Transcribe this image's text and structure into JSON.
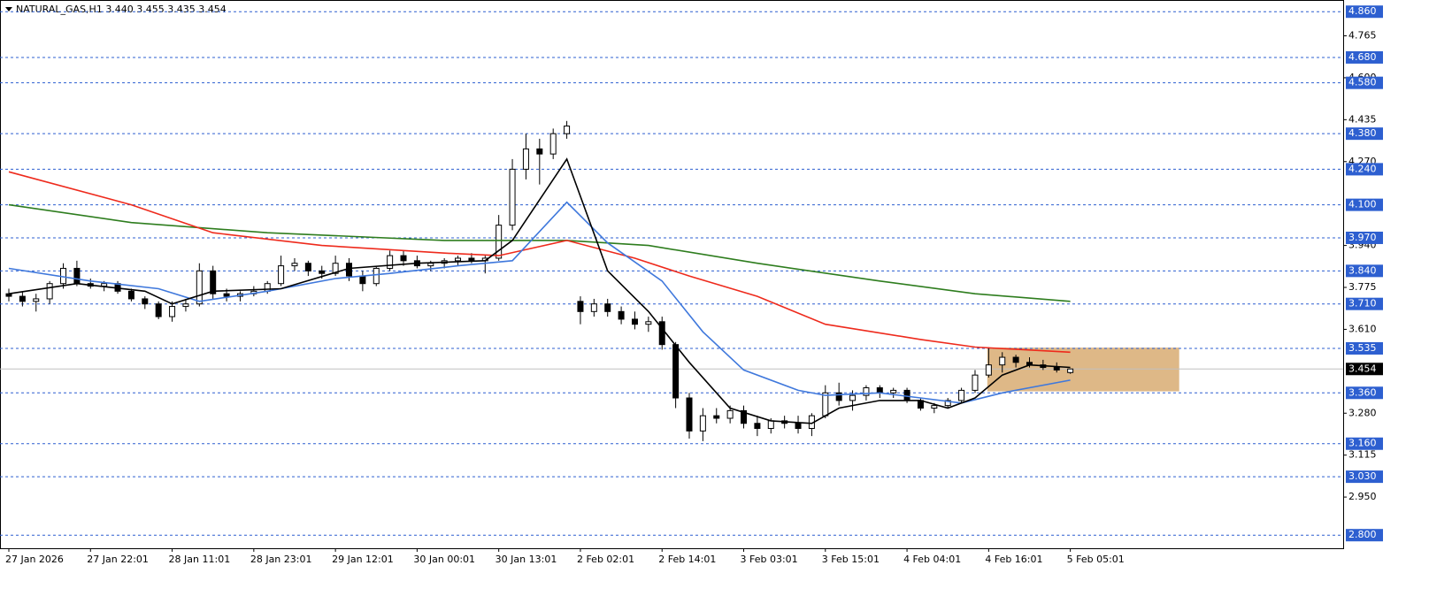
{
  "chart_data": {
    "type": "candlestick",
    "title": "NATURAL_GAS,H1  3.440 3.455 3.435 3.454",
    "ylim": [
      2.7485,
      4.906
    ],
    "xlim": [
      -0.65,
      98.05
    ],
    "yticks": [
      {
        "value": 4.765,
        "label": "4.765"
      },
      {
        "value": 4.6,
        "label": "4.600"
      },
      {
        "value": 4.435,
        "label": "4.435"
      },
      {
        "value": 4.27,
        "label": "4.270"
      },
      {
        "value": 3.94,
        "label": "3.940"
      },
      {
        "value": 3.775,
        "label": "3.775"
      },
      {
        "value": 3.61,
        "label": "3.610"
      },
      {
        "value": 3.28,
        "label": "3.280"
      },
      {
        "value": 3.115,
        "label": "3.115"
      },
      {
        "value": 2.95,
        "label": "2.950"
      }
    ],
    "levels": [
      {
        "value": 4.86,
        "label": "4.860"
      },
      {
        "value": 4.68,
        "label": "4.680"
      },
      {
        "value": 4.58,
        "label": "4.580"
      },
      {
        "value": 4.38,
        "label": "4.380"
      },
      {
        "value": 4.24,
        "label": "4.240"
      },
      {
        "value": 4.1,
        "label": "4.100"
      },
      {
        "value": 3.97,
        "label": "3.970"
      },
      {
        "value": 3.84,
        "label": "3.840"
      },
      {
        "value": 3.71,
        "label": "3.710"
      },
      {
        "value": 3.535,
        "label": "3.535"
      },
      {
        "value": 3.36,
        "label": "3.360"
      },
      {
        "value": 3.16,
        "label": "3.160"
      },
      {
        "value": 3.03,
        "label": "3.030"
      },
      {
        "value": 2.8,
        "label": "2.800"
      }
    ],
    "level_color": "#2d5fd0",
    "current": {
      "value": 3.454,
      "label": "3.454"
    },
    "xticks": [
      {
        "value": 0,
        "label": "27 Jan 2026"
      },
      {
        "value": 6,
        "label": "27 Jan 22:01"
      },
      {
        "value": 12,
        "label": "28 Jan 11:01"
      },
      {
        "value": 18,
        "label": "28 Jan 23:01"
      },
      {
        "value": 24,
        "label": "29 Jan 12:01"
      },
      {
        "value": 30,
        "label": "30 Jan 00:01"
      },
      {
        "value": 36,
        "label": "30 Jan 13:01"
      },
      {
        "value": 42,
        "label": "2 Feb 02:01"
      },
      {
        "value": 48,
        "label": "2 Feb 14:01"
      },
      {
        "value": 54,
        "label": "3 Feb 03:01"
      },
      {
        "value": 60,
        "label": "3 Feb 15:01"
      },
      {
        "value": 66,
        "label": "4 Feb 04:01"
      },
      {
        "value": 72,
        "label": "4 Feb 16:01"
      },
      {
        "value": 78,
        "label": "5 Feb 05:01"
      }
    ],
    "zone": {
      "x": [
        71.9,
        86.0
      ],
      "y": [
        3.366,
        3.538
      ],
      "color": "#deb887"
    },
    "ohlc": [
      [
        3.75,
        3.77,
        3.72,
        3.74
      ],
      [
        3.74,
        3.76,
        3.7,
        3.72
      ],
      [
        3.72,
        3.75,
        3.68,
        3.73
      ],
      [
        3.73,
        3.8,
        3.71,
        3.79
      ],
      [
        3.79,
        3.87,
        3.77,
        3.85
      ],
      [
        3.85,
        3.88,
        3.78,
        3.79
      ],
      [
        3.79,
        3.81,
        3.77,
        3.78
      ],
      [
        3.78,
        3.8,
        3.76,
        3.79
      ],
      [
        3.79,
        3.8,
        3.75,
        3.76
      ],
      [
        3.76,
        3.77,
        3.72,
        3.73
      ],
      [
        3.73,
        3.74,
        3.69,
        3.71
      ],
      [
        3.71,
        3.72,
        3.65,
        3.66
      ],
      [
        3.66,
        3.72,
        3.64,
        3.7
      ],
      [
        3.7,
        3.73,
        3.68,
        3.71
      ],
      [
        3.71,
        3.87,
        3.7,
        3.84
      ],
      [
        3.84,
        3.86,
        3.73,
        3.75
      ],
      [
        3.75,
        3.77,
        3.72,
        3.74
      ],
      [
        3.74,
        3.76,
        3.72,
        3.75
      ],
      [
        3.75,
        3.78,
        3.74,
        3.76
      ],
      [
        3.76,
        3.8,
        3.75,
        3.79
      ],
      [
        3.79,
        3.9,
        3.78,
        3.86
      ],
      [
        3.86,
        3.89,
        3.84,
        3.87
      ],
      [
        3.87,
        3.88,
        3.82,
        3.84
      ],
      [
        3.84,
        3.86,
        3.81,
        3.83
      ],
      [
        3.83,
        3.9,
        3.82,
        3.87
      ],
      [
        3.87,
        3.89,
        3.8,
        3.82
      ],
      [
        3.82,
        3.84,
        3.76,
        3.79
      ],
      [
        3.79,
        3.86,
        3.78,
        3.85
      ],
      [
        3.85,
        3.92,
        3.84,
        3.9
      ],
      [
        3.9,
        3.92,
        3.86,
        3.88
      ],
      [
        3.88,
        3.9,
        3.85,
        3.86
      ],
      [
        3.86,
        3.88,
        3.84,
        3.87
      ],
      [
        3.87,
        3.89,
        3.85,
        3.88
      ],
      [
        3.88,
        3.9,
        3.86,
        3.89
      ],
      [
        3.89,
        3.91,
        3.87,
        3.88
      ],
      [
        3.88,
        3.9,
        3.83,
        3.89
      ],
      [
        3.89,
        4.06,
        3.88,
        4.02
      ],
      [
        4.02,
        4.28,
        4.0,
        4.24
      ],
      [
        4.24,
        4.38,
        4.2,
        4.32
      ],
      [
        4.32,
        4.36,
        4.18,
        4.3
      ],
      [
        4.3,
        4.4,
        4.28,
        4.38
      ],
      [
        4.38,
        4.43,
        4.36,
        4.41
      ],
      [
        3.72,
        3.74,
        3.63,
        3.68
      ],
      [
        3.68,
        3.73,
        3.66,
        3.71
      ],
      [
        3.71,
        3.73,
        3.66,
        3.68
      ],
      [
        3.68,
        3.7,
        3.63,
        3.65
      ],
      [
        3.65,
        3.68,
        3.61,
        3.63
      ],
      [
        3.63,
        3.66,
        3.6,
        3.64
      ],
      [
        3.64,
        3.66,
        3.53,
        3.55
      ],
      [
        3.55,
        3.56,
        3.3,
        3.34
      ],
      [
        3.34,
        3.36,
        3.18,
        3.21
      ],
      [
        3.21,
        3.3,
        3.17,
        3.27
      ],
      [
        3.27,
        3.3,
        3.24,
        3.26
      ],
      [
        3.26,
        3.31,
        3.24,
        3.29
      ],
      [
        3.29,
        3.31,
        3.22,
        3.24
      ],
      [
        3.24,
        3.27,
        3.19,
        3.22
      ],
      [
        3.22,
        3.26,
        3.2,
        3.25
      ],
      [
        3.25,
        3.27,
        3.22,
        3.24
      ],
      [
        3.24,
        3.27,
        3.2,
        3.22
      ],
      [
        3.22,
        3.28,
        3.19,
        3.27
      ],
      [
        3.27,
        3.39,
        3.26,
        3.36
      ],
      [
        3.36,
        3.4,
        3.31,
        3.33
      ],
      [
        3.33,
        3.37,
        3.29,
        3.35
      ],
      [
        3.35,
        3.39,
        3.33,
        3.38
      ],
      [
        3.38,
        3.39,
        3.34,
        3.36
      ],
      [
        3.36,
        3.38,
        3.34,
        3.37
      ],
      [
        3.37,
        3.38,
        3.32,
        3.33
      ],
      [
        3.33,
        3.34,
        3.29,
        3.3
      ],
      [
        3.3,
        3.32,
        3.28,
        3.31
      ],
      [
        3.31,
        3.34,
        3.3,
        3.33
      ],
      [
        3.33,
        3.38,
        3.32,
        3.37
      ],
      [
        3.37,
        3.45,
        3.36,
        3.43
      ],
      [
        3.43,
        3.54,
        3.42,
        3.47
      ],
      [
        3.47,
        3.52,
        3.44,
        3.5
      ],
      [
        3.5,
        3.51,
        3.46,
        3.48
      ],
      [
        3.48,
        3.5,
        3.46,
        3.47
      ],
      [
        3.47,
        3.49,
        3.45,
        3.46
      ],
      [
        3.46,
        3.48,
        3.44,
        3.45
      ],
      [
        3.44,
        3.455,
        3.435,
        3.454
      ]
    ],
    "series": [
      {
        "color": "#2e7d1e",
        "x": [
          0,
          9,
          19,
          32,
          41,
          47,
          55,
          64,
          71,
          78
        ],
        "values": [
          4.1,
          4.03,
          3.99,
          3.96,
          3.96,
          3.94,
          3.87,
          3.8,
          3.75,
          3.72
        ]
      },
      {
        "color": "#ee2a1c",
        "x": [
          0,
          9,
          15,
          23,
          32,
          36,
          41,
          46,
          50,
          55,
          60,
          67,
          71,
          78
        ],
        "values": [
          4.23,
          4.1,
          3.99,
          3.94,
          3.91,
          3.9,
          3.96,
          3.89,
          3.82,
          3.74,
          3.63,
          3.57,
          3.54,
          3.52
        ]
      },
      {
        "color": "#3f78dc",
        "x": [
          0,
          6,
          11,
          14,
          19,
          24,
          28,
          33,
          37,
          41,
          44,
          48,
          51,
          54,
          58,
          60,
          64,
          70,
          73,
          78
        ],
        "values": [
          3.85,
          3.8,
          3.77,
          3.72,
          3.76,
          3.81,
          3.83,
          3.86,
          3.88,
          4.11,
          3.95,
          3.8,
          3.6,
          3.45,
          3.37,
          3.35,
          3.36,
          3.32,
          3.36,
          3.41
        ]
      },
      {
        "color": "#000000",
        "x": [
          0,
          5,
          10,
          12,
          15,
          20,
          25,
          30,
          35,
          37,
          41,
          44,
          47,
          50,
          53,
          56,
          59,
          61,
          64,
          67,
          69,
          71,
          73,
          75,
          78
        ],
        "values": [
          3.75,
          3.79,
          3.76,
          3.71,
          3.76,
          3.77,
          3.85,
          3.87,
          3.88,
          3.96,
          4.28,
          3.84,
          3.68,
          3.48,
          3.3,
          3.25,
          3.24,
          3.3,
          3.33,
          3.33,
          3.3,
          3.34,
          3.43,
          3.47,
          3.46
        ]
      }
    ]
  }
}
